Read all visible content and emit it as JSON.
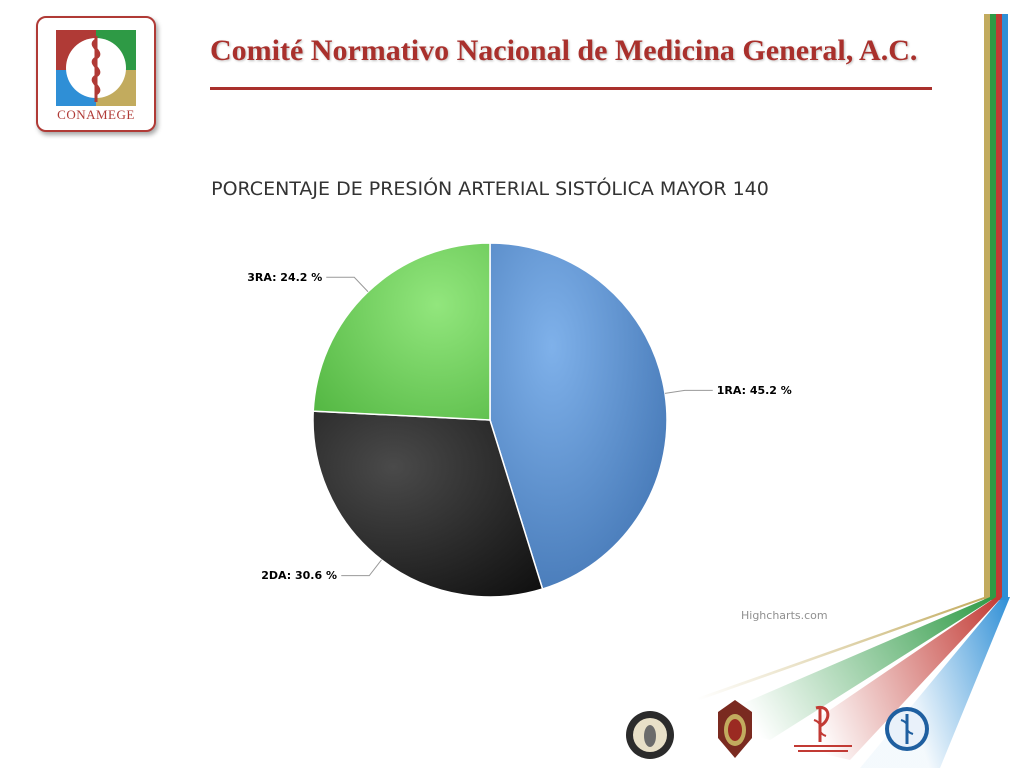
{
  "header": {
    "org_title": "Comité Normativo Nacional de Medicina General, A.C.",
    "logo_text": "CONAMEGE"
  },
  "chart_data": {
    "type": "pie",
    "title": "PORCENTAJE DE PRESIÓN ARTERIAL SISTÓLICA MAYOR 140",
    "labels": [
      "1RA",
      "2DA",
      "3RA"
    ],
    "values": [
      45.2,
      30.6,
      24.2
    ],
    "unit": "%",
    "data_labels": [
      "1RA: 45.2 %",
      "2DA: 30.6 %",
      "3RA: 24.2 %"
    ],
    "colors": [
      "#4f86c6",
      "#2a2a2a",
      "#6fce5a"
    ],
    "credits": "Highcharts.com"
  },
  "colors": {
    "brand_red": "#a9302c",
    "stripe_gold": "#c2ab5e",
    "stripe_green": "#2e9a45",
    "stripe_red": "#c23a34",
    "stripe_blue": "#2f8fd6"
  },
  "footer": {
    "seals": [
      "academia-seal-icon",
      "military-seal-icon",
      "consejo-seal-icon",
      "aesculapius-seal-icon"
    ]
  }
}
